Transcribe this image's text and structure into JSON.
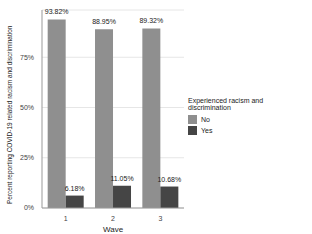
{
  "chart_data": {
    "type": "bar",
    "x_label": "Wave",
    "y_label": "Percent reporting COVID-19 related racism and discrimination",
    "legend_title": "Experienced racism and discrimination",
    "categories": [
      "1",
      "2",
      "3"
    ],
    "series": [
      {
        "name": "No",
        "color": "#8f8f8f",
        "values": [
          93.82,
          88.95,
          89.32
        ],
        "value_labels": [
          "93.82%",
          "88.95%",
          "89.32%"
        ]
      },
      {
        "name": "Yes",
        "color": "#454545",
        "values": [
          6.18,
          11.05,
          10.68
        ],
        "value_labels": [
          "6.18%",
          "11.05%",
          "10.68%"
        ]
      }
    ],
    "ylim": [
      0,
      98.5
    ],
    "yticks": [
      {
        "value": 0,
        "label": "0%"
      },
      {
        "value": 25,
        "label": "25%"
      },
      {
        "value": 50,
        "label": "50%"
      },
      {
        "value": 75,
        "label": "75%"
      }
    ],
    "grid": true,
    "legend": "right",
    "data_labels": true
  }
}
